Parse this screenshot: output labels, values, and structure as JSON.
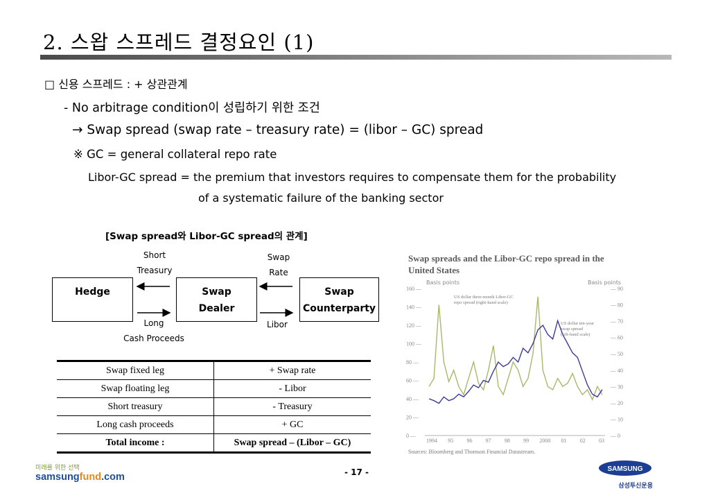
{
  "title": "2. 스왑 스프레드 결정요인 (1)",
  "bullets": {
    "heading": "□ 신용 스프레드 : + 상관관계",
    "condition": "- No arbitrage condition이 성립하기 위한 조건",
    "equation": "→ Swap spread (swap rate – treasury rate) = (libor – GC) spread",
    "gc_note": "※ GC = general collateral repo rate",
    "libor_line1": "Libor-GC spread = the premium that investors requires to compensate them for the probability",
    "libor_line2": "of a systematic failure of the banking sector"
  },
  "diagram": {
    "title": "[Swap spread와 Libor-GC spread의 관계]",
    "hedge": "Hedge",
    "dealer_line1": "Swap",
    "dealer_line2": "Dealer",
    "counterparty_line1": "Swap",
    "counterparty_line2": "Counterparty",
    "short_treasury_1": "Short",
    "short_treasury_2": "Treasury",
    "long_cash_1": "Long",
    "long_cash_2": "Cash Proceeds",
    "swap_rate_1": "Swap",
    "swap_rate_2": "Rate",
    "libor": "Libor"
  },
  "income_table": {
    "rows": [
      [
        "Swap fixed leg",
        "+ Swap rate"
      ],
      [
        "Swap floating leg",
        "- Libor"
      ],
      [
        "Short treasury",
        "- Treasury"
      ],
      [
        "Long cash proceeds",
        "+ GC"
      ],
      [
        "Total income :",
        "Swap spread – (Libor – GC)"
      ]
    ]
  },
  "chart_data": {
    "type": "line",
    "title": "Swap spreads and the Libor-GC repo spread in the United States",
    "y_left_label": "Basis points",
    "y_right_label": "Basis points",
    "y_left_ticks": [
      "160",
      "140",
      "120",
      "100",
      "80",
      "60",
      "40",
      "20",
      "0"
    ],
    "y_right_ticks": [
      "90",
      "80",
      "70",
      "60",
      "50",
      "40",
      "30",
      "20",
      "10",
      "0"
    ],
    "x_ticks": [
      "1994",
      "95",
      "96",
      "97",
      "98",
      "99",
      "2000",
      "01",
      "02",
      "03"
    ],
    "source": "Sources:  Bloomberg and Thomson Financial Datastream.",
    "series": [
      {
        "name": "US dollar three-month Libor-GC repo spread (right-hand scale)",
        "color": "#a8b86a",
        "values": [
          30,
          35,
          80,
          45,
          33,
          40,
          30,
          25,
          35,
          45,
          32,
          28,
          40,
          55,
          30,
          25,
          35,
          45,
          40,
          30,
          35,
          50,
          85,
          40,
          30,
          28,
          35,
          30,
          32,
          38,
          30,
          25,
          28,
          22,
          30,
          25
        ]
      },
      {
        "name": "US dollar ten-year swap spread (left-hand scale)",
        "color": "#3a3a9a",
        "values": [
          40,
          38,
          35,
          42,
          38,
          40,
          45,
          42,
          48,
          55,
          52,
          60,
          58,
          70,
          80,
          75,
          78,
          85,
          80,
          95,
          90,
          100,
          115,
          120,
          110,
          105,
          125,
          110,
          100,
          90,
          85,
          70,
          55,
          45,
          42,
          50
        ]
      }
    ],
    "ylim_left": [
      0,
      160
    ],
    "ylim_right": [
      0,
      90
    ]
  },
  "footer": {
    "tagline": "미래를 위한 선택",
    "site_a": "samsung",
    "site_b": "fund",
    "site_c": ".com",
    "page": "- 17 -",
    "brand": "SAMSUNG",
    "brand_kr": "삼성투신운용"
  }
}
